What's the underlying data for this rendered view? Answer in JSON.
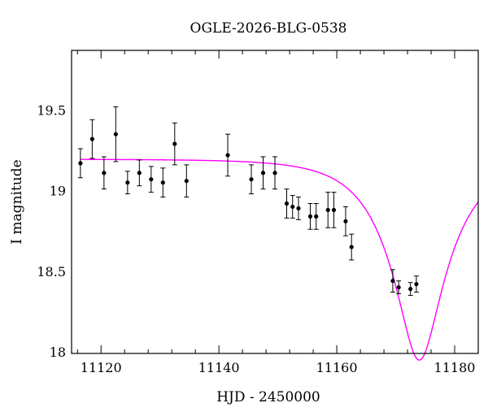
{
  "chart_data": {
    "type": "scatter",
    "title": "OGLE-2026-BLG-0538",
    "xlabel": "HJD - 2450000",
    "ylabel": "I magnitude",
    "xlim": [
      11115,
      11184
    ],
    "ylim": [
      19.87,
      17.99
    ],
    "y_inverted": true,
    "x_ticks": [
      11120,
      11140,
      11160,
      11180
    ],
    "y_ticks": [
      18,
      18.5,
      19,
      19.5
    ],
    "x_tick_labels": [
      "11120",
      "11140",
      "11160",
      "11180"
    ],
    "y_tick_labels": [
      "18",
      "18.5",
      "19",
      "19.5"
    ],
    "grid": false,
    "colors": {
      "model": "#ff00ff",
      "points": "#000000"
    },
    "series": [
      {
        "kind": "points_with_errorbars",
        "x": [
          11116.5,
          11118.5,
          11120.5,
          11122.5,
          11124.5,
          11126.5,
          11128.5,
          11130.5,
          11132.5,
          11134.5,
          11141.5,
          11145.5,
          11147.5,
          11149.5,
          11151.5,
          11152.5,
          11153.5,
          11155.5,
          11156.5,
          11158.5,
          11159.5,
          11161.5,
          11162.5,
          11169.5,
          11170.5,
          11172.5,
          11173.5
        ],
        "y": [
          19.17,
          19.32,
          19.11,
          19.35,
          19.05,
          19.11,
          19.07,
          19.05,
          19.29,
          19.06,
          19.22,
          19.07,
          19.11,
          19.11,
          18.92,
          18.9,
          18.89,
          18.84,
          18.84,
          18.88,
          18.88,
          18.81,
          18.65,
          18.44,
          18.4,
          18.39,
          18.42
        ],
        "err": [
          0.09,
          0.12,
          0.1,
          0.17,
          0.07,
          0.08,
          0.08,
          0.09,
          0.13,
          0.1,
          0.13,
          0.09,
          0.1,
          0.1,
          0.09,
          0.07,
          0.07,
          0.08,
          0.08,
          0.11,
          0.11,
          0.09,
          0.08,
          0.07,
          0.04,
          0.04,
          0.05
        ]
      },
      {
        "kind": "model_curve",
        "t0": 11174,
        "tE": 9.5,
        "u0": 0.33,
        "baseline_mag": 19.195
      }
    ]
  }
}
